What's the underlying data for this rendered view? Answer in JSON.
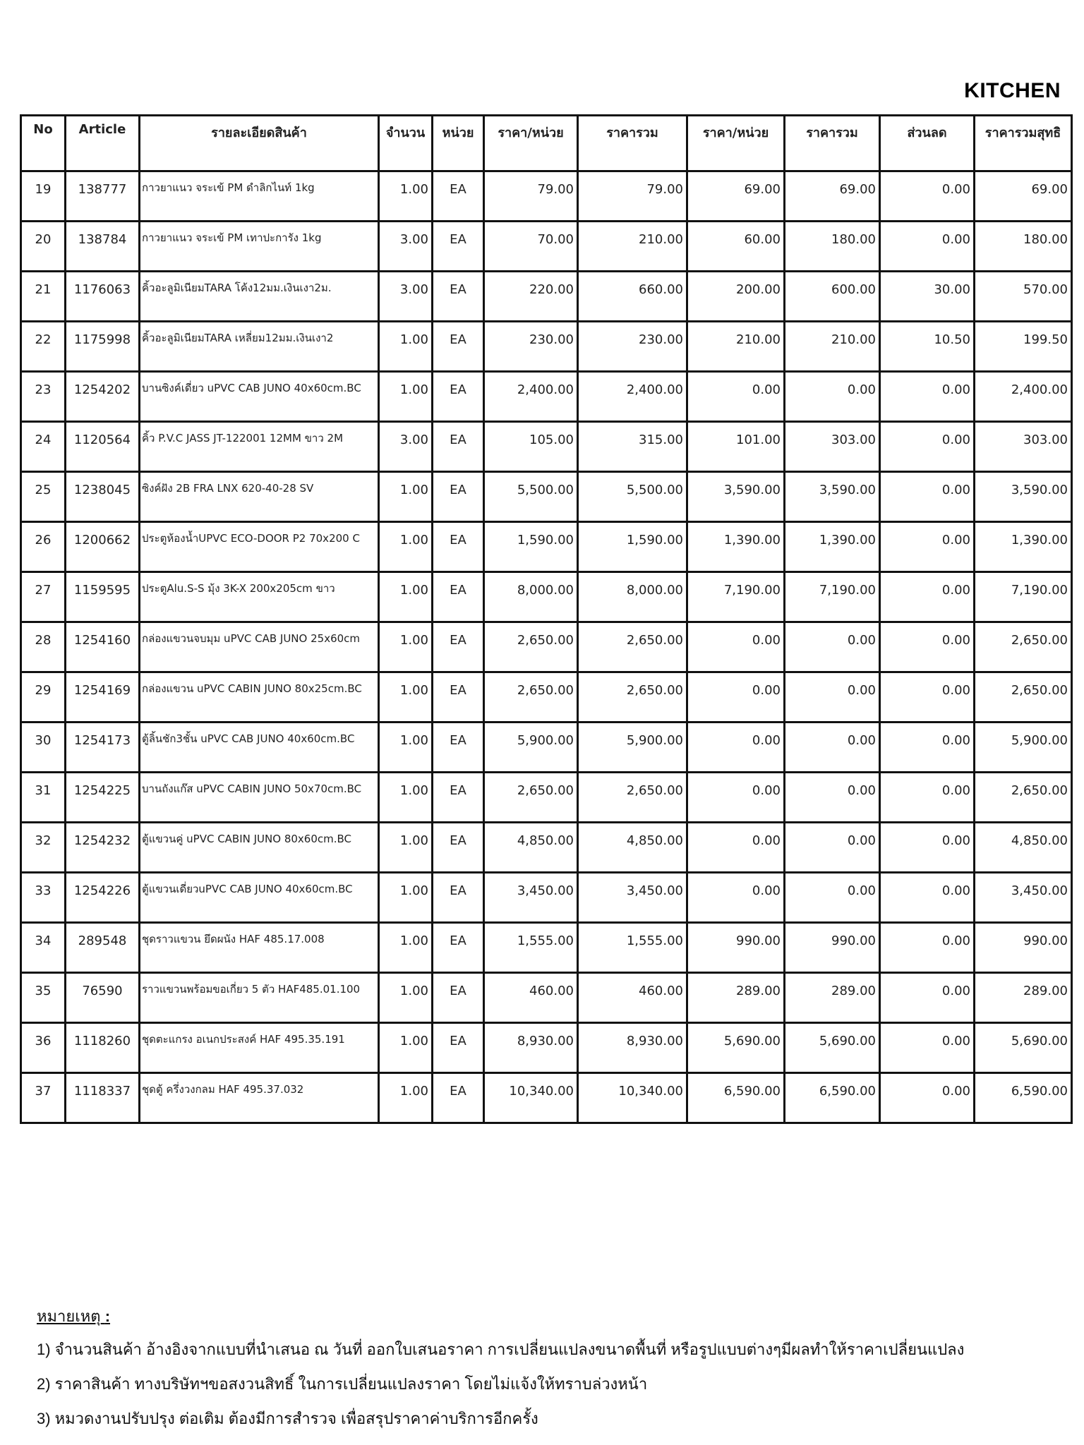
{
  "title": "KITCHEN",
  "table": {
    "headers": [
      "No",
      "Article",
      "รายละเอียดสินค้า",
      "จำนวน",
      "หน่วย",
      "ราคา/หน่วย",
      "ราคารวม",
      "ราคา/หน่วย",
      "ราคารวม",
      "ส่วนลด",
      "ราคารวมสุทธิ"
    ],
    "rows": [
      [
        "19",
        "138777",
        "กาวยาแนว จระเข้ PM ดำลิกไนท์ 1kg",
        "1.00",
        "EA",
        "79.00",
        "79.00",
        "69.00",
        "69.00",
        "0.00",
        "69.00"
      ],
      [
        "20",
        "138784",
        "กาวยาแนว จระเข้ PM เทาปะการัง 1kg",
        "3.00",
        "EA",
        "70.00",
        "210.00",
        "60.00",
        "180.00",
        "0.00",
        "180.00"
      ],
      [
        "21",
        "1176063",
        "คิ้วอะลูมิเนียมTARA โค้ง12มม.เงินเงา2ม.",
        "3.00",
        "EA",
        "220.00",
        "660.00",
        "200.00",
        "600.00",
        "30.00",
        "570.00"
      ],
      [
        "22",
        "1175998",
        "คิ้วอะลูมิเนียมTARA เหลี่ยม12มม.เงินเงา2",
        "1.00",
        "EA",
        "230.00",
        "230.00",
        "210.00",
        "210.00",
        "10.50",
        "199.50"
      ],
      [
        "23",
        "1254202",
        "บานซิงค์เดี่ยว uPVC CAB JUNO 40x60cm.BC",
        "1.00",
        "EA",
        "2,400.00",
        "2,400.00",
        "0.00",
        "0.00",
        "0.00",
        "2,400.00"
      ],
      [
        "24",
        "1120564",
        "คิ้ว P.V.C JASS JT-122001 12MM ขาว 2M",
        "3.00",
        "EA",
        "105.00",
        "315.00",
        "101.00",
        "303.00",
        "0.00",
        "303.00"
      ],
      [
        "25",
        "1238045",
        "ซิงค์ฝัง 2B FRA LNX 620-40-28 SV",
        "1.00",
        "EA",
        "5,500.00",
        "5,500.00",
        "3,590.00",
        "3,590.00",
        "0.00",
        "3,590.00"
      ],
      [
        "26",
        "1200662",
        "ประตูห้องน้ำUPVC ECO-DOOR P2 70x200 C",
        "1.00",
        "EA",
        "1,590.00",
        "1,590.00",
        "1,390.00",
        "1,390.00",
        "0.00",
        "1,390.00"
      ],
      [
        "27",
        "1159595",
        "ประตูAlu.S-S มุ้ง 3K-X 200x205cm ขาว",
        "1.00",
        "EA",
        "8,000.00",
        "8,000.00",
        "7,190.00",
        "7,190.00",
        "0.00",
        "7,190.00"
      ],
      [
        "28",
        "1254160",
        "กล่องแขวนจบมุม uPVC CAB JUNO 25x60cm",
        "1.00",
        "EA",
        "2,650.00",
        "2,650.00",
        "0.00",
        "0.00",
        "0.00",
        "2,650.00"
      ],
      [
        "29",
        "1254169",
        "กล่องแขวน uPVC CABIN JUNO 80x25cm.BC",
        "1.00",
        "EA",
        "2,650.00",
        "2,650.00",
        "0.00",
        "0.00",
        "0.00",
        "2,650.00"
      ],
      [
        "30",
        "1254173",
        "ตู้ลิ้นชัก3ชั้น uPVC CAB JUNO 40x60cm.BC",
        "1.00",
        "EA",
        "5,900.00",
        "5,900.00",
        "0.00",
        "0.00",
        "0.00",
        "5,900.00"
      ],
      [
        "31",
        "1254225",
        "บานถังแก๊ส uPVC CABIN JUNO 50x70cm.BC",
        "1.00",
        "EA",
        "2,650.00",
        "2,650.00",
        "0.00",
        "0.00",
        "0.00",
        "2,650.00"
      ],
      [
        "32",
        "1254232",
        "ตู้แขวนคู่ uPVC CABIN JUNO 80x60cm.BC",
        "1.00",
        "EA",
        "4,850.00",
        "4,850.00",
        "0.00",
        "0.00",
        "0.00",
        "4,850.00"
      ],
      [
        "33",
        "1254226",
        "ตู้แขวนเดี่ยวuPVC CAB JUNO 40x60cm.BC",
        "1.00",
        "EA",
        "3,450.00",
        "3,450.00",
        "0.00",
        "0.00",
        "0.00",
        "3,450.00"
      ],
      [
        "34",
        "289548",
        "ชุดราวแขวน ยึดผนัง HAF 485.17.008",
        "1.00",
        "EA",
        "1,555.00",
        "1,555.00",
        "990.00",
        "990.00",
        "0.00",
        "990.00"
      ],
      [
        "35",
        "76590",
        "ราวแขวนพร้อมขอเกี่ยว 5 ตัว HAF485.01.100",
        "1.00",
        "EA",
        "460.00",
        "460.00",
        "289.00",
        "289.00",
        "0.00",
        "289.00"
      ],
      [
        "36",
        "1118260",
        "ชุดตะแกรง อเนกประสงค์ HAF 495.35.191",
        "1.00",
        "EA",
        "8,930.00",
        "8,930.00",
        "5,690.00",
        "5,690.00",
        "0.00",
        "5,690.00"
      ],
      [
        "37",
        "1118337",
        "ชุดตู้ ครึ่งวงกลม HAF 495.37.032",
        "1.00",
        "EA",
        "10,340.00",
        "10,340.00",
        "6,590.00",
        "6,590.00",
        "0.00",
        "6,590.00"
      ]
    ]
  },
  "notes": {
    "heading": "หมายเหตุ",
    "colon": ":",
    "lines": [
      "1) จำนวนสินค้า อ้างอิงจากแบบที่นำเสนอ ณ วันที่ ออกใบเสนอราคา การเปลี่ยนแปลงขนาดพื้นที่ หรือรูปแบบต่างๆมีผลทำให้ราคาเปลี่ยนแปลง",
      "2) ราคาสินค้า ทางบริษัทฯขอสงวนสิทธิ์ ในการเปลี่ยนแปลงราคา โดยไม่แจ้งให้ทราบล่วงหน้า",
      "3) หมวดงานปรับปรุง ต่อเติม ต้องมีการสำรวจ เพื่อสรุปราคาค่าบริการอีกครั้ง"
    ]
  }
}
